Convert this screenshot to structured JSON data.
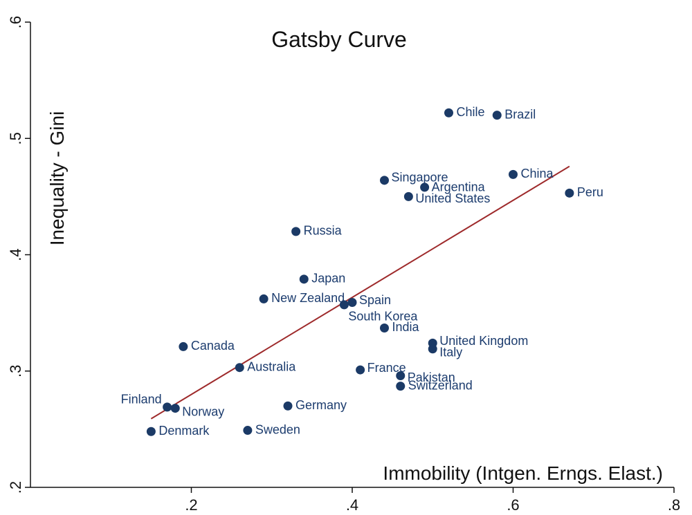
{
  "chart_data": {
    "type": "scatter",
    "title": "Gatsby Curve",
    "xlabel": "Immobility (Intgen. Erngs. Elast.)",
    "ylabel": "Inequality - Gini",
    "xlim": [
      0.0,
      0.8
    ],
    "ylim": [
      0.2,
      0.6
    ],
    "xticks": [
      ".2",
      ".4",
      ".6",
      ".8"
    ],
    "xtick_values": [
      0.2,
      0.4,
      0.6,
      0.8
    ],
    "yticks": [
      ".2",
      ".3",
      ".4",
      ".5",
      ".6"
    ],
    "ytick_values": [
      0.2,
      0.3,
      0.4,
      0.5,
      0.6
    ],
    "grid": false,
    "colors": {
      "marker": "#1b3a66",
      "fit_line": "#9e2a2b",
      "label": "#1c3c6e"
    },
    "points": [
      {
        "label": "Chile",
        "x": 0.52,
        "y": 0.522
      },
      {
        "label": "Brazil",
        "x": 0.58,
        "y": 0.52
      },
      {
        "label": "China",
        "x": 0.6,
        "y": 0.469
      },
      {
        "label": "Peru",
        "x": 0.67,
        "y": 0.453
      },
      {
        "label": "Singapore",
        "x": 0.44,
        "y": 0.464
      },
      {
        "label": "Argentina",
        "x": 0.49,
        "y": 0.458
      },
      {
        "label": "United States",
        "x": 0.47,
        "y": 0.45
      },
      {
        "label": "Russia",
        "x": 0.33,
        "y": 0.42
      },
      {
        "label": "Japan",
        "x": 0.34,
        "y": 0.379
      },
      {
        "label": "New Zealand",
        "x": 0.29,
        "y": 0.362
      },
      {
        "label": "Spain",
        "x": 0.4,
        "y": 0.359
      },
      {
        "label": "South Korea",
        "x": 0.39,
        "y": 0.357
      },
      {
        "label": "India",
        "x": 0.44,
        "y": 0.337
      },
      {
        "label": "United Kingdom",
        "x": 0.5,
        "y": 0.324
      },
      {
        "label": "Italy",
        "x": 0.5,
        "y": 0.319
      },
      {
        "label": "Canada",
        "x": 0.19,
        "y": 0.321
      },
      {
        "label": "Australia",
        "x": 0.26,
        "y": 0.303
      },
      {
        "label": "France",
        "x": 0.41,
        "y": 0.301
      },
      {
        "label": "Pakistan",
        "x": 0.46,
        "y": 0.296
      },
      {
        "label": "Switzerland",
        "x": 0.46,
        "y": 0.287
      },
      {
        "label": "Finland",
        "x": 0.17,
        "y": 0.269
      },
      {
        "label": "Norway",
        "x": 0.18,
        "y": 0.268
      },
      {
        "label": "Germany",
        "x": 0.32,
        "y": 0.27
      },
      {
        "label": "Denmark",
        "x": 0.15,
        "y": 0.248
      },
      {
        "label": "Sweden",
        "x": 0.27,
        "y": 0.249
      }
    ],
    "fit_line": {
      "x": [
        0.15,
        0.67
      ],
      "y": [
        0.259,
        0.476
      ]
    }
  }
}
